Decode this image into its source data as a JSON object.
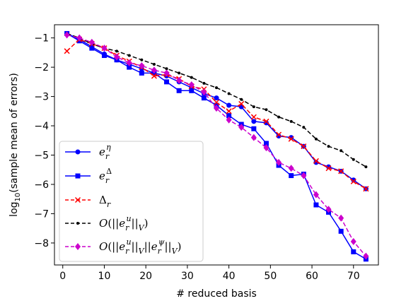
{
  "chart_data": {
    "type": "line",
    "xlabel": "# reduced basis",
    "ylabel": "log10(sample mean of errors)",
    "xlim": [
      -2,
      76
    ],
    "ylim": [
      -8.75,
      -0.55
    ],
    "xticks": [
      0,
      10,
      20,
      30,
      40,
      50,
      60,
      70
    ],
    "yticks": [
      -1,
      -2,
      -3,
      -4,
      -5,
      -6,
      -7,
      -8
    ],
    "xtick_labels": [
      "0",
      "10",
      "20",
      "30",
      "40",
      "50",
      "60",
      "70"
    ],
    "ytick_labels": [
      "−1",
      "−2",
      "−3",
      "−4",
      "−5",
      "−6",
      "−7",
      "−8"
    ],
    "grid": false,
    "legend_position": "lower-left",
    "x": [
      1,
      4,
      7,
      10,
      13,
      16,
      19,
      22,
      25,
      28,
      31,
      34,
      37,
      40,
      43,
      46,
      49,
      52,
      55,
      58,
      61,
      64,
      67,
      70,
      73
    ],
    "series": [
      {
        "name": "e_r^η",
        "color": "#0000ff",
        "marker": "circle",
        "linestyle": "solid",
        "values": [
          -0.85,
          -1.05,
          -1.3,
          -1.55,
          -1.75,
          -1.9,
          -2.05,
          -2.2,
          -2.3,
          -2.5,
          -2.7,
          -2.9,
          -3.05,
          -3.3,
          -3.35,
          -3.85,
          -3.9,
          -4.35,
          -4.4,
          -4.7,
          -5.25,
          -5.4,
          -5.55,
          -5.85,
          -6.15
        ]
      },
      {
        "name": "e_r^Δ",
        "color": "#0000ff",
        "marker": "square",
        "linestyle": "solid",
        "values": [
          -0.85,
          -1.1,
          -1.35,
          -1.6,
          -1.75,
          -2.0,
          -2.2,
          -2.2,
          -2.5,
          -2.8,
          -2.8,
          -3.05,
          -3.3,
          -3.65,
          -3.95,
          -4.1,
          -4.6,
          -5.35,
          -5.7,
          -5.65,
          -6.7,
          -6.95,
          -7.6,
          -8.3,
          -8.55
        ]
      },
      {
        "name": "Δ_r",
        "color": "#ff0000",
        "marker": "x",
        "linestyle": "dashed",
        "values": [
          -1.45,
          -1.05,
          -1.2,
          -1.35,
          -1.6,
          -1.8,
          -2.0,
          -2.3,
          -2.25,
          -2.4,
          -2.65,
          -2.75,
          -3.2,
          -3.5,
          -3.25,
          -3.7,
          -3.85,
          -4.3,
          -4.45,
          -4.7,
          -5.2,
          -5.45,
          -5.55,
          -5.9,
          -6.15
        ]
      },
      {
        "name": "O(||e_r^u||_V)",
        "color": "#000000",
        "marker": "dot",
        "linestyle": "dashed",
        "values": [
          -0.85,
          -1.0,
          -1.2,
          -1.35,
          -1.45,
          -1.6,
          -1.75,
          -1.9,
          -2.05,
          -2.2,
          -2.35,
          -2.55,
          -2.7,
          -2.9,
          -3.1,
          -3.35,
          -3.45,
          -3.7,
          -3.85,
          -4.05,
          -4.45,
          -4.7,
          -4.85,
          -5.15,
          -5.4
        ]
      },
      {
        "name": "O(||e_r^u||_V ||e_r^ψ||_V)",
        "color": "#cc00cc",
        "marker": "diamond",
        "linestyle": "dashed",
        "values": [
          -0.9,
          -1.0,
          -1.15,
          -1.35,
          -1.65,
          -1.85,
          -1.95,
          -2.1,
          -2.2,
          -2.45,
          -2.6,
          -2.85,
          -3.4,
          -3.8,
          -4.05,
          -4.4,
          -4.75,
          -5.25,
          -5.45,
          -5.7,
          -6.35,
          -6.85,
          -7.15,
          -7.95,
          -8.45
        ]
      }
    ]
  }
}
